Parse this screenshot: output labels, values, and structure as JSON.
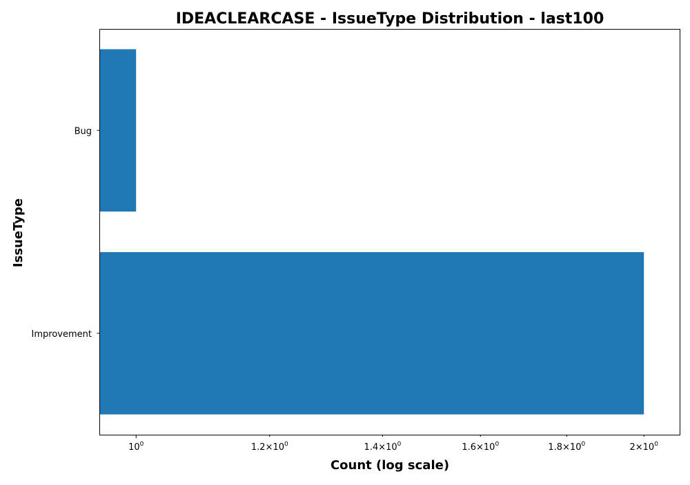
{
  "chart_data": {
    "type": "bar",
    "orientation": "horizontal",
    "title": "IDEACLEARCASE - IssueType Distribution - last100",
    "xlabel": "Count (log scale)",
    "ylabel": "IssueType",
    "x_scale": "log",
    "xlim": [
      0.952,
      2.1
    ],
    "categories": [
      "Bug",
      "Improvement"
    ],
    "values": [
      1,
      2
    ],
    "x_ticks": [
      {
        "value": 1.0,
        "coefficient": "",
        "exponent": "0"
      },
      {
        "value": 1.2,
        "coefficient": "1.2",
        "exponent": "0"
      },
      {
        "value": 1.4,
        "coefficient": "1.4",
        "exponent": "0"
      },
      {
        "value": 1.6,
        "coefficient": "1.6",
        "exponent": "0"
      },
      {
        "value": 1.8,
        "coefficient": "1.8",
        "exponent": "0"
      },
      {
        "value": 2.0,
        "coefficient": "2",
        "exponent": "0"
      }
    ],
    "bar_color": "#1f77b4",
    "grid": false,
    "legend": "none"
  }
}
